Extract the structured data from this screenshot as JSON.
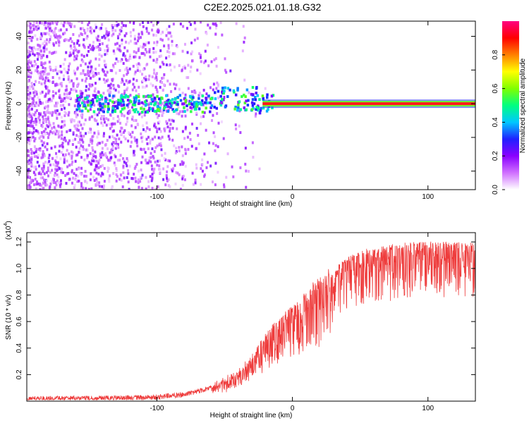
{
  "title": "C2E2.2025.021.01.18.G32",
  "colors": {
    "line": "#ee3b3b",
    "spectral_band_center": "#ff1a1a",
    "spectral_band_edge": "#66ff33"
  },
  "chart_data": [
    {
      "type": "heatmap",
      "name": "spectrogram",
      "xlabel": "Height of straight line (km)",
      "ylabel": "Frequency (Hz)",
      "xlim": [
        -196,
        135
      ],
      "ylim": [
        -51,
        49
      ],
      "x_ticks": [
        -100,
        0,
        100
      ],
      "x_tick_labels": [
        "-100",
        "0",
        "100"
      ],
      "y_ticks": [
        -40,
        -20,
        0,
        20,
        40
      ],
      "y_tick_labels": [
        "-40",
        "-20",
        "0",
        "20",
        "40"
      ],
      "dominant_frequency_hz": 0,
      "noise_region_x": [
        -196,
        -20
      ],
      "colorbar": {
        "label": "Normalized spectral amplitude",
        "range": [
          0,
          1
        ],
        "ticks": [
          0.0,
          0.2,
          0.4,
          0.6,
          0.8
        ],
        "tick_labels": [
          "0.0",
          "0.2",
          "0.4",
          "0.6",
          "0.8"
        ],
        "colormap": [
          "#ffffff",
          "#d070ff",
          "#8a00ff",
          "#2020ff",
          "#00c8ff",
          "#00ff80",
          "#80ff00",
          "#ffff00",
          "#ff8000",
          "#ff0000",
          "#ff0080"
        ]
      }
    },
    {
      "type": "line",
      "name": "snr",
      "xlabel": "Height of straight line (km)",
      "ylabel": "SNR (10 * v/v)",
      "y_scale_label": "(x10",
      "y_scale_exponent": "4",
      "xlim": [
        -196,
        135
      ],
      "ylim": [
        0,
        1.27
      ],
      "x_ticks": [
        -100,
        0,
        100
      ],
      "x_tick_labels": [
        "-100",
        "0",
        "100"
      ],
      "y_ticks": [
        0.2,
        0.4,
        0.6,
        0.8,
        1.0,
        1.2
      ],
      "y_tick_labels": [
        "0.2",
        "0.4",
        "0.6",
        "0.8",
        "1.0",
        "1.2"
      ],
      "envelope_x": [
        -196,
        -150,
        -100,
        -80,
        -60,
        -40,
        -30,
        -20,
        -10,
        0,
        10,
        20,
        30,
        40,
        50,
        60,
        80,
        100,
        120,
        135
      ],
      "envelope_y": [
        0.04,
        0.04,
        0.05,
        0.07,
        0.12,
        0.22,
        0.34,
        0.5,
        0.62,
        0.72,
        0.83,
        0.93,
        1.0,
        1.07,
        1.12,
        1.15,
        1.18,
        1.19,
        1.19,
        1.18
      ]
    }
  ]
}
